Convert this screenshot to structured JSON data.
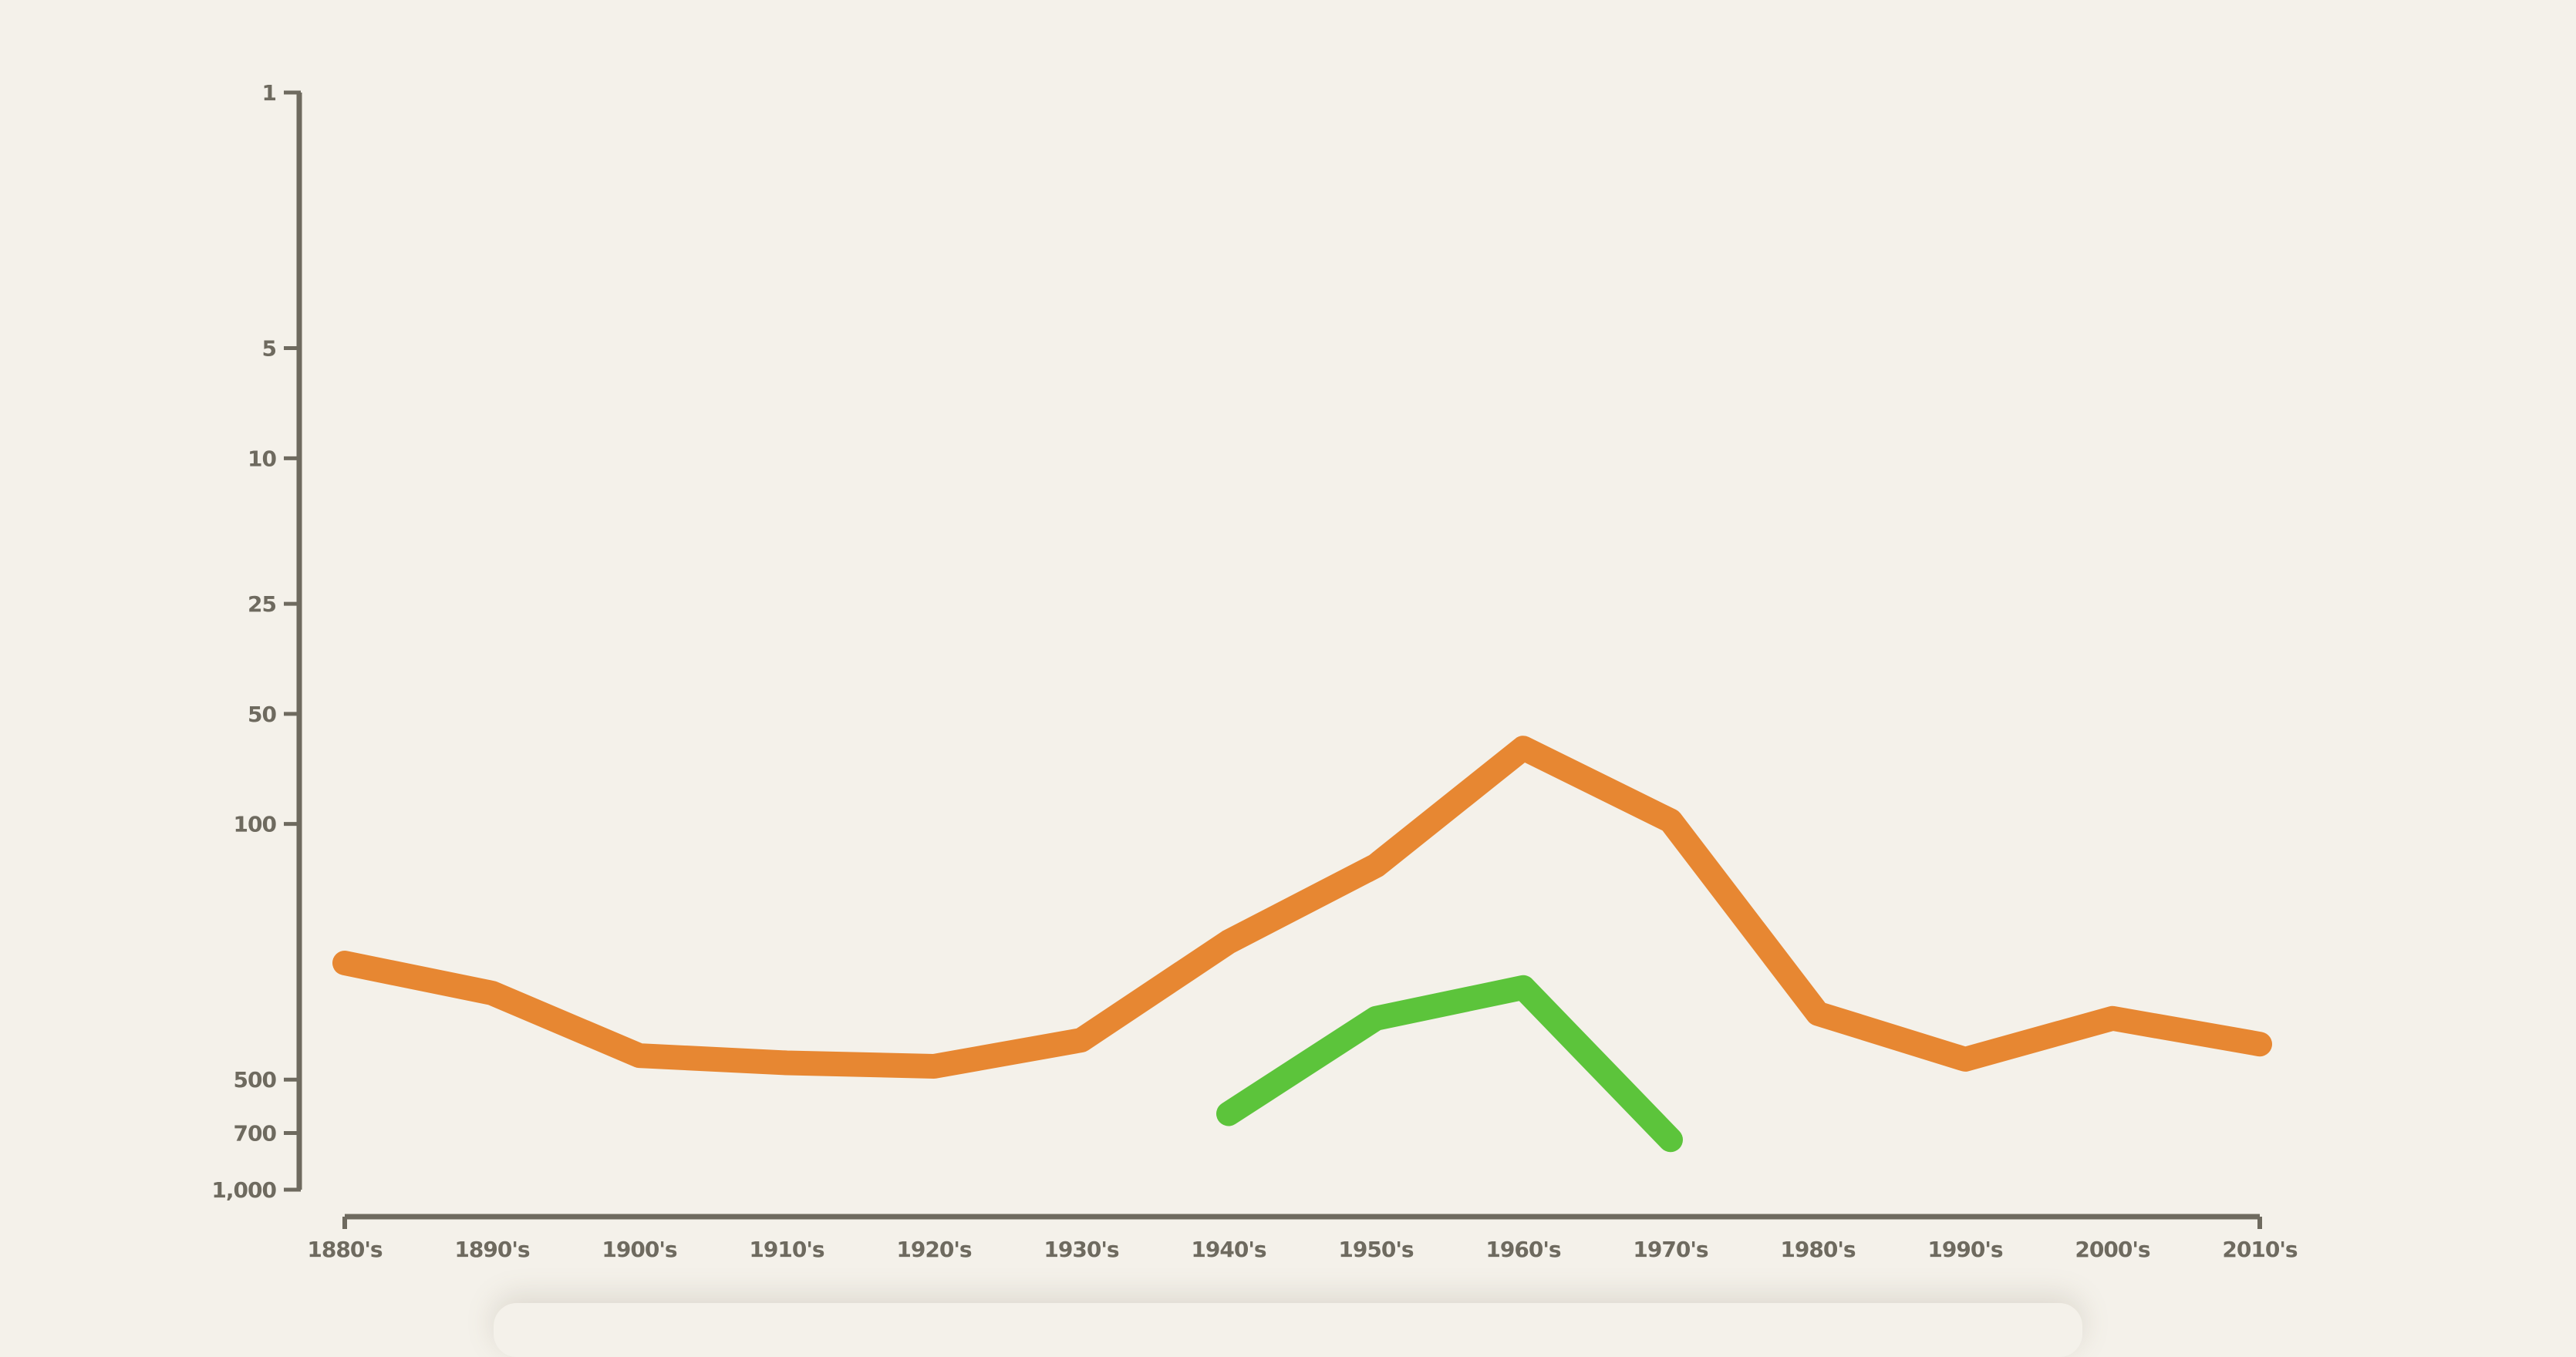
{
  "chart_data": {
    "type": "line",
    "title": "",
    "xlabel": "",
    "ylabel": "",
    "y_scale": "log",
    "y_inverted": true,
    "ylim": [
      1,
      1000
    ],
    "grid": false,
    "legend": "none",
    "categories": [
      "1880's",
      "1890's",
      "1900's",
      "1910's",
      "1920's",
      "1930's",
      "1940's",
      "1950's",
      "1960's",
      "1970's",
      "1980's",
      "1990's",
      "2000's",
      "2010's"
    ],
    "y_ticks": [
      1,
      5,
      10,
      25,
      50,
      100,
      500,
      700,
      1000
    ],
    "y_tick_labels": [
      "1",
      "5",
      "10",
      "25",
      "50",
      "100",
      "500",
      "700",
      "1,000"
    ],
    "series": [
      {
        "values": [
          240,
          290,
          430,
          450,
          460,
          390,
          210,
          130,
          62,
          98,
          330,
          440,
          340,
          400
        ],
        "color": "#e78732"
      },
      {
        "values": [
          null,
          null,
          null,
          null,
          null,
          null,
          620,
          340,
          280,
          730,
          null,
          null,
          null,
          null
        ],
        "color": "#5cc43b"
      }
    ],
    "axis_color": "#6e6a5f",
    "label_color": "#6e6a5f"
  }
}
